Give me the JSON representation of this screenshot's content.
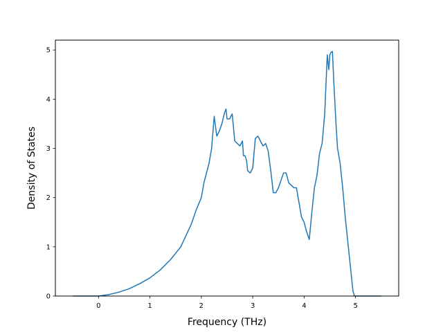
{
  "chart_data": {
    "type": "line",
    "title": "",
    "xlabel": "Frequency (THz)",
    "ylabel": "Density of States",
    "xlim": [
      -0.84,
      5.84
    ],
    "ylim": [
      0,
      5.2
    ],
    "xticks": [
      0,
      1,
      2,
      3,
      4,
      5
    ],
    "yticks": [
      0,
      1,
      2,
      3,
      4,
      5
    ],
    "grid": false,
    "legend": "none",
    "colors": {
      "line": "#1f77b4",
      "axes": "#000000",
      "background": "#ffffff"
    },
    "series": [
      {
        "name": "",
        "x": [
          -0.5,
          -0.2,
          0.0,
          0.2,
          0.4,
          0.6,
          0.8,
          1.0,
          1.2,
          1.4,
          1.6,
          1.8,
          1.9,
          2.0,
          2.05,
          2.1,
          2.15,
          2.2,
          2.25,
          2.3,
          2.35,
          2.4,
          2.45,
          2.48,
          2.5,
          2.55,
          2.6,
          2.65,
          2.7,
          2.75,
          2.8,
          2.82,
          2.85,
          2.88,
          2.9,
          2.95,
          3.0,
          3.05,
          3.1,
          3.15,
          3.2,
          3.25,
          3.3,
          3.35,
          3.4,
          3.45,
          3.5,
          3.55,
          3.6,
          3.65,
          3.7,
          3.75,
          3.8,
          3.85,
          3.9,
          3.95,
          4.0,
          4.05,
          4.1,
          4.15,
          4.2,
          4.25,
          4.3,
          4.35,
          4.4,
          4.45,
          4.48,
          4.5,
          4.52,
          4.55,
          4.58,
          4.62,
          4.65,
          4.7,
          4.75,
          4.8,
          4.85,
          4.9,
          4.95,
          4.98,
          5.0,
          5.2,
          5.5
        ],
        "y": [
          0.0,
          0.0,
          0.0,
          0.03,
          0.08,
          0.15,
          0.25,
          0.37,
          0.53,
          0.74,
          1.0,
          1.45,
          1.75,
          2.0,
          2.3,
          2.5,
          2.7,
          3.0,
          3.65,
          3.25,
          3.35,
          3.5,
          3.72,
          3.8,
          3.6,
          3.6,
          3.7,
          3.15,
          3.1,
          3.05,
          3.15,
          2.85,
          2.85,
          2.75,
          2.55,
          2.5,
          2.6,
          3.2,
          3.25,
          3.15,
          3.05,
          3.1,
          2.95,
          2.55,
          2.1,
          2.1,
          2.2,
          2.35,
          2.5,
          2.5,
          2.3,
          2.25,
          2.2,
          2.2,
          1.9,
          1.6,
          1.5,
          1.3,
          1.15,
          1.7,
          2.2,
          2.45,
          2.9,
          3.1,
          3.7,
          4.9,
          4.6,
          4.9,
          4.95,
          4.97,
          4.3,
          3.5,
          3.0,
          2.7,
          2.2,
          1.6,
          1.1,
          0.6,
          0.1,
          0.0,
          0.0,
          0.0,
          0.0
        ]
      }
    ]
  }
}
